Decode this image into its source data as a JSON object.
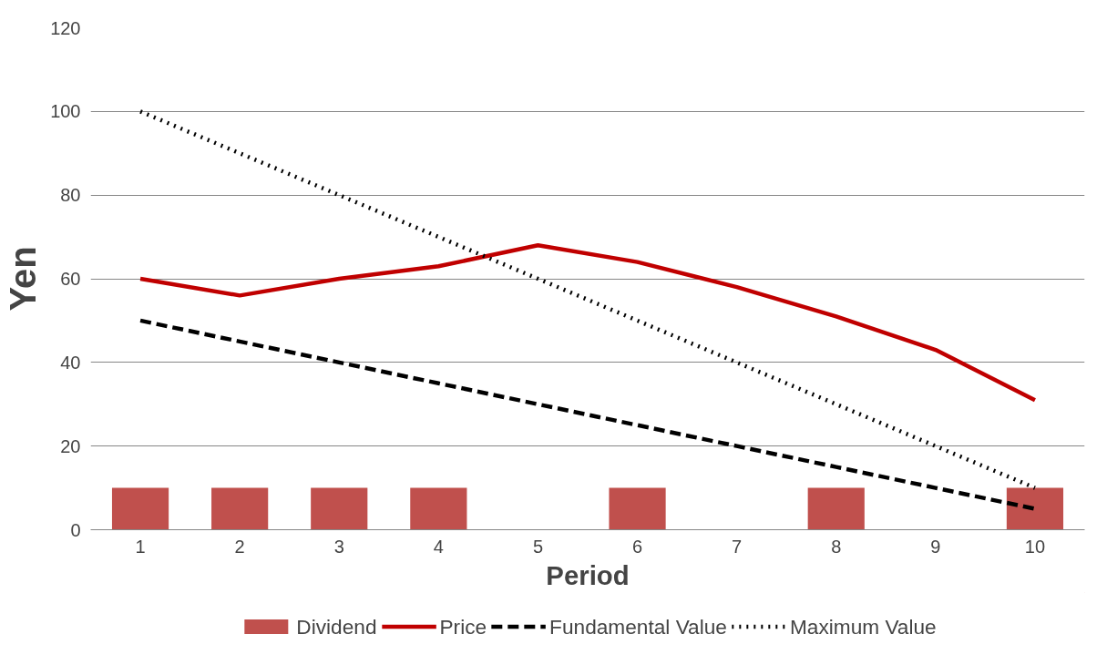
{
  "chart_data": {
    "type": "line",
    "xlabel": "Period",
    "ylabel": "Yen",
    "categories": [
      "1",
      "2",
      "3",
      "4",
      "5",
      "6",
      "7",
      "8",
      "9",
      "10"
    ],
    "series": [
      {
        "name": "Dividend",
        "type": "bar",
        "color": "#c0504d",
        "values": [
          10,
          10,
          10,
          10,
          0,
          10,
          0,
          10,
          0,
          10
        ]
      },
      {
        "name": "Price",
        "color": "#c00000",
        "line_style": "solid",
        "values": [
          60,
          56,
          60,
          63,
          68,
          64,
          58,
          51,
          43,
          31
        ]
      },
      {
        "name": "Fundamental Value",
        "color": "#000000",
        "line_style": "dashed",
        "values": [
          50,
          45,
          40,
          35,
          30,
          25,
          20,
          15,
          10,
          5
        ]
      },
      {
        "name": "Maximum Value",
        "color": "#000000",
        "line_style": "dotted",
        "values": [
          100,
          90,
          80,
          70,
          60,
          50,
          40,
          30,
          20,
          10
        ]
      }
    ],
    "ylim": [
      0,
      120
    ],
    "yticks": [
      0,
      20,
      40,
      60,
      80,
      100,
      120
    ],
    "grid": "y",
    "legend": "bottom",
    "marker": "none"
  }
}
